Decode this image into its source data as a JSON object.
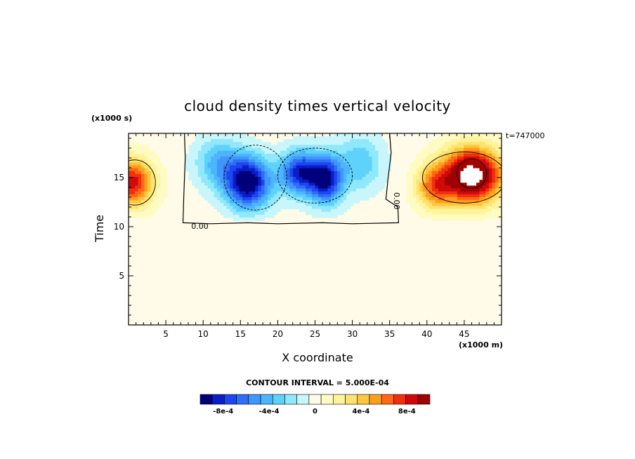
{
  "chart_data": {
    "type": "heatmap",
    "title": "cloud density times vertical velocity",
    "xlabel": "X coordinate",
    "ylabel": "Time",
    "x_unit": "(x1000 m)",
    "y_unit": "(x1000 s)",
    "annotation": "t=747000",
    "xlim": [
      0,
      50
    ],
    "ylim": [
      0,
      19.5
    ],
    "x_ticks": [
      5,
      10,
      15,
      20,
      25,
      30,
      35,
      40,
      45
    ],
    "y_ticks": [
      5,
      10,
      15
    ],
    "grid": false,
    "contour_interval_label": "CONTOUR INTERVAL = 5.000E-04",
    "contour_labels": [
      "0.00",
      "0.00"
    ],
    "colorbar": {
      "min": -0.001,
      "max": 0.001,
      "tick_values": [
        -0.0008,
        -0.0004,
        0,
        0.0004,
        0.0008
      ],
      "tick_labels": [
        "-8e-4",
        "-4e-4",
        "0",
        "4e-4",
        "8e-4"
      ],
      "colors": [
        "#00007a",
        "#0a1ec8",
        "#1e46f0",
        "#2f6ef5",
        "#3f96fb",
        "#4eb4fd",
        "#5fd2fc",
        "#8fe8fb",
        "#c8f6fa",
        "#fffbe8",
        "#fffbc2",
        "#fff49c",
        "#ffe270",
        "#ffc63e",
        "#ff9e1e",
        "#ff6814",
        "#f0300e",
        "#d00a0a",
        "#a00000"
      ]
    },
    "features": [
      {
        "kind": "negative",
        "x": 16,
        "y": 14.5,
        "sx": 3.0,
        "sy": 2.6,
        "amp": -0.00105
      },
      {
        "kind": "negative",
        "x": 23,
        "y": 15.5,
        "sx": 2.6,
        "sy": 2.2,
        "amp": -0.00085
      },
      {
        "kind": "negative",
        "x": 26.5,
        "y": 14.8,
        "sx": 2.2,
        "sy": 2.4,
        "amp": -0.0009
      },
      {
        "kind": "negative",
        "x": 12,
        "y": 16.5,
        "sx": 3.0,
        "sy": 2.5,
        "amp": -0.0004
      },
      {
        "kind": "negative",
        "x": 31,
        "y": 16.5,
        "sx": 3.0,
        "sy": 2.8,
        "amp": -0.00035
      },
      {
        "kind": "positive",
        "x": 46,
        "y": 15.2,
        "sx": 4.0,
        "sy": 2.8,
        "amp": 0.00125
      },
      {
        "kind": "positive",
        "x": 41,
        "y": 14.0,
        "sx": 2.5,
        "sy": 2.2,
        "amp": 0.00055
      },
      {
        "kind": "positive",
        "x": 0.5,
        "y": 14.5,
        "sx": 2.8,
        "sy": 2.4,
        "amp": 0.00085
      }
    ]
  }
}
